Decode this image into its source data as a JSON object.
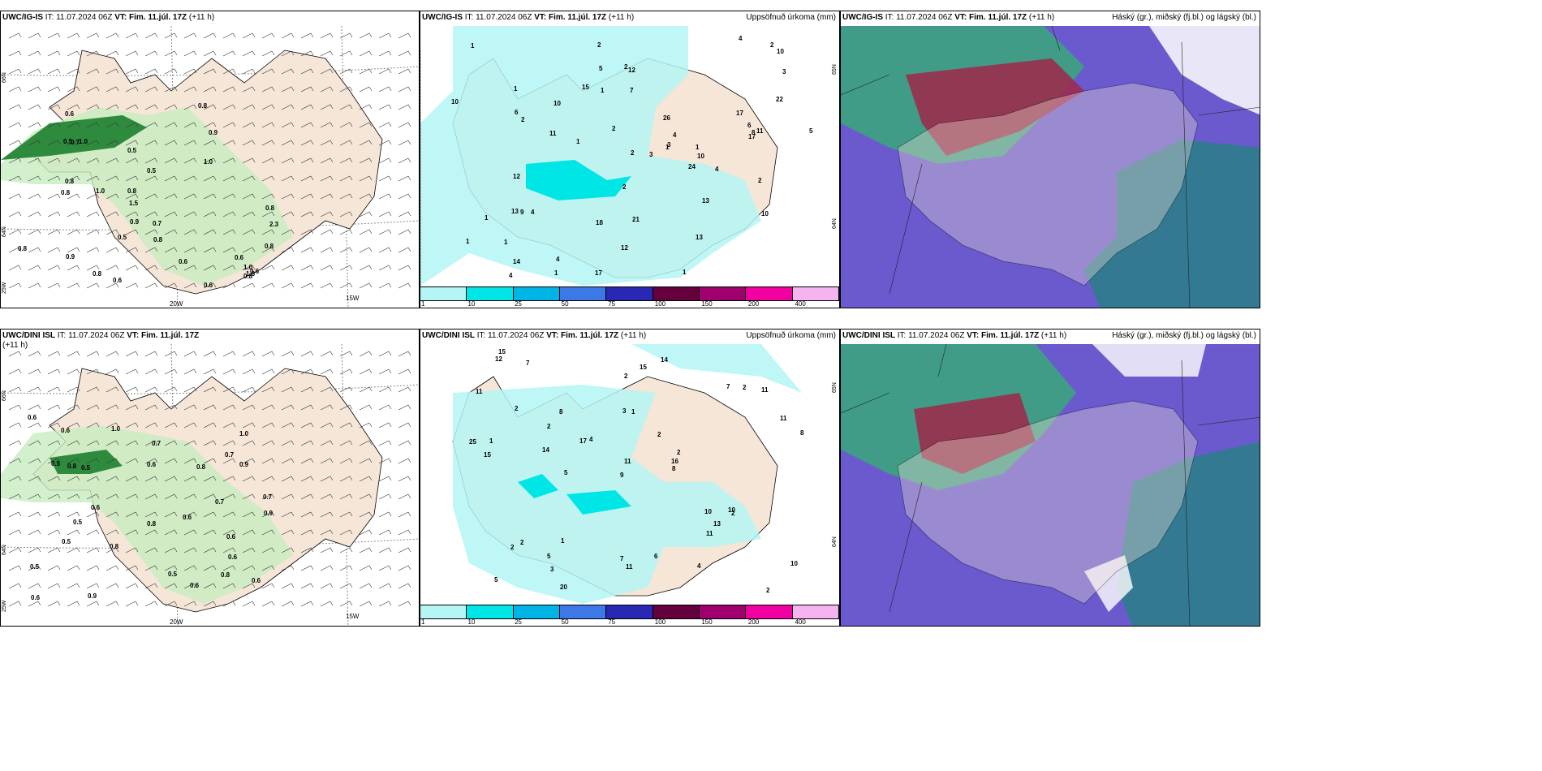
{
  "panels": [
    {
      "id": "p1",
      "model": "UWC/IG-IS",
      "it": "IT: 11.07.2024 06Z",
      "vt": "VT: Fim. 11.júl. 17Z",
      "lead": "(+11 h)",
      "right": "",
      "lats": [
        "66N",
        "64N"
      ],
      "lons": [
        "20W",
        "15W"
      ],
      "lonleft": "25W"
    },
    {
      "id": "p2",
      "model": "UWC/IG-IS",
      "it": "IT: 11.07.2024 06Z",
      "vt": "VT: Fim. 11.júl. 17Z",
      "lead": "(+11 h)",
      "right": "Uppsöfnuð úrkoma (mm)",
      "lats": [
        "65N",
        "64N"
      ]
    },
    {
      "id": "p3",
      "model": "UWC/IG-IS",
      "it": "IT: 11.07.2024 06Z",
      "vt": "VT: Fim. 11.júl. 17Z",
      "lead": "(+11 h)",
      "right": "Háský (gr.), miðský (fj.bl.) og lágský (bl.)"
    },
    {
      "id": "p4",
      "model": "UWC/DINI ISL",
      "it": "IT: 11.07.2024 06Z",
      "vt": "VT: Fim. 11.júl. 17Z",
      "lead": "(+11 h)",
      "right": "",
      "lats": [
        "66N",
        "64N"
      ],
      "lons": [
        "20W",
        "15W"
      ],
      "lonleft": "25W"
    },
    {
      "id": "p5",
      "model": "UWC/DINI ISL",
      "it": "IT: 11.07.2024 06Z",
      "vt": "VT: Fim. 11.júl. 17Z",
      "lead": "(+11 h)",
      "right": "Uppsöfnuð úrkoma (mm)",
      "lats": [
        "65N",
        "64N"
      ]
    },
    {
      "id": "p6",
      "model": "UWC/DINI ISL",
      "it": "IT: 11.07.2024 06Z",
      "vt": "VT: Fim. 11.júl. 17Z",
      "lead": "(+11 h)",
      "right": "Háský (gr.), miðský (fj.bl.) og lágský (bl.)"
    }
  ],
  "colorbar": {
    "labels": [
      "1",
      "10",
      "25",
      "50",
      "75",
      "100",
      "150",
      "200",
      "400"
    ],
    "colors": [
      "#b4f5f5",
      "#00e6e6",
      "#00b4e6",
      "#3c78e6",
      "#2828b4",
      "#64003c",
      "#a0006e",
      "#f000a0",
      "#f5b4f0"
    ]
  },
  "wind_values_top": [
    "1.0",
    "1.3",
    "0.8",
    "0.8",
    "1.0",
    "2.3",
    "1.0",
    "1.5",
    "0.6",
    "0.6",
    "0.9",
    "0.8",
    "0.5",
    "0.8",
    "0.5",
    "0.6",
    "0.8",
    "0.6",
    "0.8",
    "0.5",
    "0.7",
    "0.6",
    "0.7",
    "0.5",
    "0.6",
    "0.8",
    "0.9",
    "0.9",
    "0.8",
    "1.0",
    "0.8",
    "0.8"
  ],
  "wind_values_bottom": [
    "0.7",
    "0.6",
    "0.5",
    "0.6",
    "0.8",
    "0.6",
    "0.8",
    "0.6",
    "0.9",
    "0.5",
    "0.8",
    "0.6",
    "0.6",
    "0.5",
    "0.5",
    "0.7",
    "0.8",
    "0.7",
    "0.5",
    "0.6",
    "0.6",
    "0.6",
    "0.7",
    "0.9",
    "0.5",
    "1.0",
    "0.9",
    "0.8",
    "0.6",
    "1.0"
  ],
  "precip_values_top": [
    "2",
    "2",
    "4",
    "1",
    "1",
    "1",
    "2",
    "3",
    "1",
    "2",
    "4",
    "10",
    "5",
    "3",
    "4",
    "10",
    "10",
    "6",
    "8",
    "10",
    "10",
    "4",
    "3",
    "1",
    "2",
    "1",
    "1",
    "13",
    "24",
    "18",
    "17",
    "13",
    "17",
    "22",
    "26",
    "17",
    "12",
    "9",
    "11",
    "12",
    "15",
    "12",
    "11",
    "5",
    "6",
    "4",
    "13",
    "14",
    "7",
    "2",
    "21",
    "1",
    "1",
    "2",
    "4",
    "1",
    "2",
    "1"
  ],
  "precip_values_bottom": [
    "3",
    "2",
    "2",
    "4",
    "5",
    "3",
    "1",
    "2",
    "2",
    "2",
    "2",
    "15",
    "10",
    "8",
    "9",
    "7",
    "11",
    "8",
    "7",
    "1",
    "2",
    "10",
    "10",
    "14",
    "17",
    "14",
    "11",
    "20",
    "25",
    "16",
    "15",
    "11",
    "8",
    "2",
    "11",
    "11",
    "13",
    "4",
    "5",
    "7",
    "12",
    "6",
    "11",
    "15",
    "5",
    "1",
    "2",
    "2"
  ]
}
